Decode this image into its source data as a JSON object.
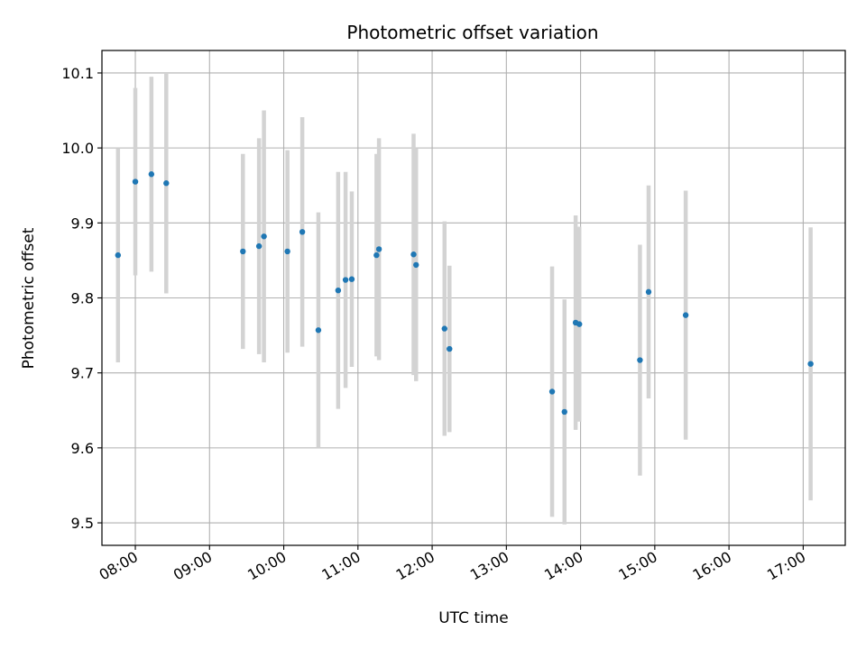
{
  "chart_data": {
    "type": "scatter",
    "title": "Photometric offset variation",
    "xlabel": "UTC time",
    "ylabel": "Photometric offset",
    "x_tick_labels": [
      "08:00",
      "09:00",
      "10:00",
      "11:00",
      "12:00",
      "13:00",
      "14:00",
      "15:00",
      "16:00",
      "17:00"
    ],
    "y_tick_labels": [
      "9.5",
      "9.6",
      "9.7",
      "9.8",
      "9.9",
      "10.0",
      "10.1"
    ],
    "y_ticks": [
      9.5,
      9.6,
      9.7,
      9.8,
      9.9,
      10.0,
      10.1
    ],
    "xlim": [
      "07:33",
      "17:34"
    ],
    "ylim": [
      9.47,
      10.13
    ],
    "grid": true,
    "marker_color": "#1f77b4",
    "errorbar_color": "#d3d3d3",
    "points": [
      {
        "x": "07:46",
        "y": 9.857,
        "err": 0.143
      },
      {
        "x": "08:00",
        "y": 9.955,
        "err": 0.125
      },
      {
        "x": "08:13",
        "y": 9.965,
        "err": 0.13
      },
      {
        "x": "08:25",
        "y": 9.953,
        "err": 0.147
      },
      {
        "x": "09:27",
        "y": 9.862,
        "err": 0.13
      },
      {
        "x": "09:40",
        "y": 9.869,
        "err": 0.144
      },
      {
        "x": "09:44",
        "y": 9.882,
        "err": 0.168
      },
      {
        "x": "10:03",
        "y": 9.862,
        "err": 0.135
      },
      {
        "x": "10:15",
        "y": 9.888,
        "err": 0.153
      },
      {
        "x": "10:28",
        "y": 9.757,
        "err": 0.157
      },
      {
        "x": "10:44",
        "y": 9.81,
        "err": 0.158
      },
      {
        "x": "10:50",
        "y": 9.824,
        "err": 0.144
      },
      {
        "x": "10:55",
        "y": 9.825,
        "err": 0.117
      },
      {
        "x": "11:15",
        "y": 9.857,
        "err": 0.135
      },
      {
        "x": "11:17",
        "y": 9.865,
        "err": 0.148
      },
      {
        "x": "11:45",
        "y": 9.858,
        "err": 0.161
      },
      {
        "x": "11:47",
        "y": 9.844,
        "err": 0.155
      },
      {
        "x": "12:10",
        "y": 9.759,
        "err": 0.143
      },
      {
        "x": "12:14",
        "y": 9.732,
        "err": 0.111
      },
      {
        "x": "13:37",
        "y": 9.675,
        "err": 0.167
      },
      {
        "x": "13:47",
        "y": 9.648,
        "err": 0.15
      },
      {
        "x": "13:56",
        "y": 9.767,
        "err": 0.143
      },
      {
        "x": "13:59",
        "y": 9.765,
        "err": 0.13
      },
      {
        "x": "14:48",
        "y": 9.717,
        "err": 0.154
      },
      {
        "x": "14:55",
        "y": 9.808,
        "err": 0.142
      },
      {
        "x": "15:25",
        "y": 9.777,
        "err": 0.166
      },
      {
        "x": "17:06",
        "y": 9.712,
        "err": 0.182
      }
    ]
  }
}
